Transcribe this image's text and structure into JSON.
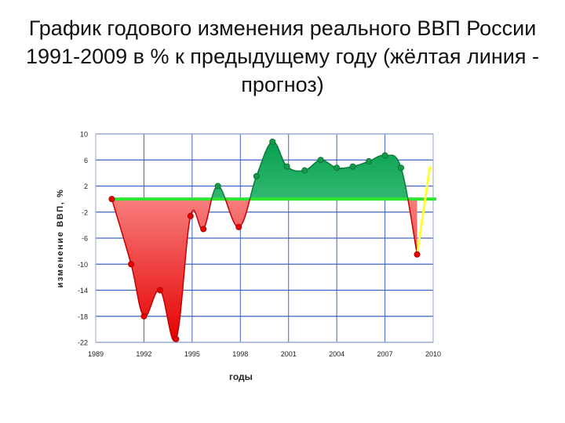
{
  "slide": {
    "title": "График годового изменения реального ВВП России 1991-2009 в % к предыдущему году (жёлтая линия - прогноз)"
  },
  "chart_data": {
    "type": "area",
    "title": "",
    "xlabel": "годы",
    "ylabel": "изменение ВВП, %",
    "xlim": [
      1989,
      2010
    ],
    "ylim": [
      -22,
      10
    ],
    "x_ticks": [
      "1989",
      "1992",
      "1995",
      "1998",
      "2001",
      "2004",
      "2007",
      "2010"
    ],
    "y_ticks": [
      "10",
      "6",
      "2",
      "-2",
      "-6",
      "-10",
      "-14",
      "-18",
      "-22"
    ],
    "grid": true,
    "baseline": 0,
    "series": [
      {
        "x": [
          1990,
          1991.2,
          1992,
          1993,
          1994,
          1994.9,
          1995.7,
          1996.6,
          1997.9,
          1999,
          2000,
          2000.9,
          2002,
          2003,
          2004,
          2005,
          2006,
          2007,
          2008,
          2009
        ],
        "values": [
          0,
          -10,
          -18,
          -14,
          -21.5,
          -2.6,
          -4.6,
          2,
          -4.3,
          3.5,
          8.8,
          5,
          4.4,
          6,
          4.8,
          5,
          5.8,
          6.7,
          4.8,
          -8.5
        ]
      },
      {
        "x": [
          2009,
          2009.8
        ],
        "values": [
          -8.5,
          5
        ]
      }
    ],
    "colors": {
      "negative_fill": "#e81818",
      "positive_fill": "#11b060",
      "baseline": "#2ee62e",
      "forecast": "#ffff33",
      "grid": "#3f63c8"
    }
  }
}
